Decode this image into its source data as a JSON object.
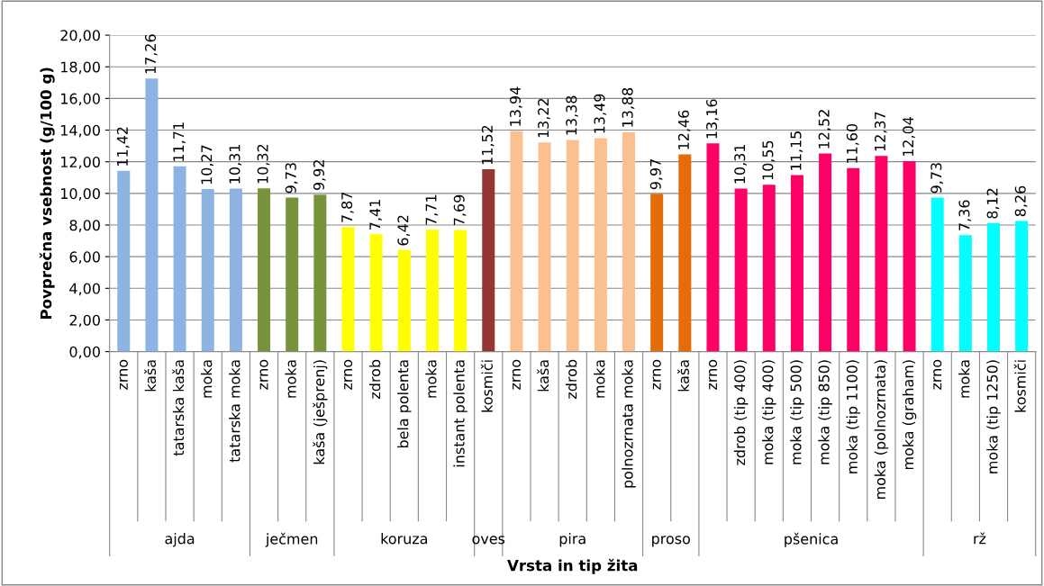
{
  "chart_data": {
    "type": "bar",
    "xlabel": "Vrsta in tip žita",
    "ylabel": "Povprečna vsebnost (g/100 g)",
    "categories": [
      "zrno",
      "kaša",
      "tatarska kaša",
      "moka",
      "tatarska moka",
      "zrno",
      "moka",
      "kaša (ješprenj)",
      "zrno",
      "zdrob",
      "bela polenta",
      "moka",
      "instant polenta",
      "kosmiči",
      "zrno",
      "kaša",
      "zdrob",
      "moka",
      "polnozrnata moka",
      "zrno",
      "kaša",
      "zrno",
      "zdrob (tip 400)",
      "moka (tip 400)",
      "moka (tip 500)",
      "moka (tip 850)",
      "moka (tip 1100)",
      "moka (polnozrnata)",
      "moka (graham)",
      "zrno",
      "moka",
      "moka (tip 1250)",
      "kosmiči"
    ],
    "values": [
      11.42,
      17.26,
      11.71,
      10.27,
      10.31,
      10.32,
      9.73,
      9.92,
      7.87,
      7.41,
      6.42,
      7.71,
      7.69,
      11.52,
      13.94,
      13.22,
      13.38,
      13.49,
      13.88,
      9.97,
      12.46,
      13.16,
      10.31,
      10.55,
      11.15,
      12.52,
      11.6,
      12.37,
      12.04,
      9.73,
      7.36,
      8.12,
      8.26
    ],
    "value_labels": [
      "11,42",
      "17,26",
      "11,71",
      "10,27",
      "10,31",
      "10,32",
      "9,73",
      "9,92",
      "7,87",
      "7,41",
      "6,42",
      "7,71",
      "7,69",
      "11,52",
      "13,94",
      "13,22",
      "13,38",
      "13,49",
      "13,88",
      "9,97",
      "12,46",
      "13,16",
      "10,31",
      "10,55",
      "11,15",
      "12,52",
      "11,60",
      "12,37",
      "12,04",
      "9,73",
      "7,36",
      "8,12",
      "8,26"
    ],
    "colors": [
      "#8db3e2",
      "#8db3e2",
      "#8db3e2",
      "#8db3e2",
      "#8db3e2",
      "#77933c",
      "#77933c",
      "#77933c",
      "#ffff00",
      "#ffff00",
      "#ffff00",
      "#ffff00",
      "#ffff00",
      "#943634",
      "#fac090",
      "#fac090",
      "#fac090",
      "#fac090",
      "#fac090",
      "#e46c0a",
      "#e46c0a",
      "#ff0066",
      "#ff0066",
      "#ff0066",
      "#ff0066",
      "#ff0066",
      "#ff0066",
      "#ff0066",
      "#ff0066",
      "#00ffff",
      "#00ffff",
      "#00ffff",
      "#00ffff"
    ],
    "annotations": [
      "ajda",
      "ječmen",
      "koruza",
      "oves",
      "pira",
      "proso",
      "pšenica",
      "rž"
    ],
    "ylim": [
      0,
      20
    ],
    "yticks": [
      {
        "value": 0,
        "label": "0,00"
      },
      {
        "value": 2,
        "label": "2,00"
      },
      {
        "value": 4,
        "label": "4,00"
      },
      {
        "value": 6,
        "label": "6,00"
      },
      {
        "value": 8,
        "label": "8,00"
      },
      {
        "value": 10,
        "label": "10,00"
      },
      {
        "value": 12,
        "label": "12,00"
      },
      {
        "value": 14,
        "label": "14,00"
      },
      {
        "value": 16,
        "label": "16,00"
      },
      {
        "value": 18,
        "label": "18,00"
      },
      {
        "value": 20,
        "label": "20,00"
      }
    ],
    "grid": "y"
  }
}
